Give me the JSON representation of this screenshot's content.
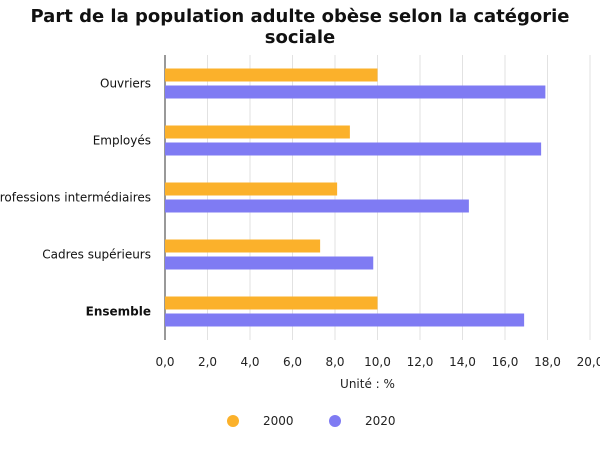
{
  "chart_data": {
    "type": "bar",
    "orientation": "horizontal",
    "title": "Part de la population adulte obèse selon la catégorie sociale",
    "xlabel": "Unité : %",
    "ylabel": "",
    "categories": [
      "Ouvriers",
      "Employés",
      "Professions intermédiaires",
      "Cadres supérieurs",
      "Ensemble"
    ],
    "highlight_category": "Ensemble",
    "series": [
      {
        "name": "2000",
        "color": "#FBB12B",
        "values": [
          10.0,
          8.7,
          8.1,
          7.3,
          10.0
        ]
      },
      {
        "name": "2020",
        "color": "#7F7BF3",
        "values": [
          17.9,
          17.7,
          14.3,
          9.8,
          16.9
        ]
      }
    ],
    "xlim": [
      0,
      20
    ],
    "xticks": [
      "0,0",
      "2,0",
      "4,0",
      "6,0",
      "8,0",
      "10,0",
      "12,0",
      "14,0",
      "16,0",
      "18,0",
      "20,0"
    ],
    "grid": true,
    "legend_position": "bottom"
  }
}
